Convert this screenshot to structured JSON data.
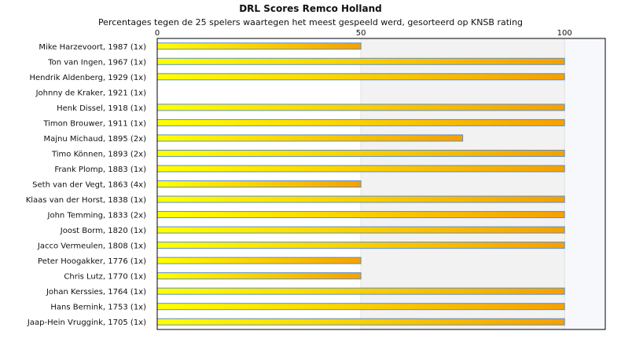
{
  "chart_data": {
    "type": "bar",
    "orientation": "horizontal",
    "title": "DRL Scores Remco Holland",
    "subtitle": "Percentages tegen de 25 spelers waartegen het meest gespeeld werd, gesorteerd op KNSB rating",
    "xlim": [
      0,
      110
    ],
    "xticks": [
      0,
      50,
      100
    ],
    "categories": [
      "Mike Harzevoort, 1987 (1x)",
      "Ton van Ingen, 1967 (1x)",
      "Hendrik Aldenberg, 1929 (1x)",
      "Johnny de Kraker, 1921 (1x)",
      "Henk Dissel, 1918 (1x)",
      "Timon Brouwer, 1911 (1x)",
      "Majnu Michaud, 1895 (2x)",
      "Timo Können, 1893 (2x)",
      "Frank Plomp, 1883 (1x)",
      "Seth van der Vegt, 1863 (4x)",
      "Klaas van der Horst, 1838 (1x)",
      "John Temming, 1833 (2x)",
      "Joost Borm, 1820 (1x)",
      "Jacco Vermeulen, 1808 (1x)",
      "Peter Hoogakker, 1776 (1x)",
      "Chris Lutz, 1770 (1x)",
      "Johan Kerssies, 1764 (1x)",
      "Hans Bernink, 1753 (1x)",
      "Jaap-Hein Vruggink, 1705 (1x)"
    ],
    "values": [
      50,
      100,
      100,
      0,
      100,
      100,
      75,
      100,
      100,
      50,
      100,
      100,
      100,
      100,
      50,
      50,
      100,
      100,
      100
    ],
    "grid": true,
    "legend": "none",
    "colors": {
      "bar_start": "#ffff00",
      "bar_end": "#f5a000",
      "bar_border": "#5b8fc9",
      "band_50_100": "#f2f2f2",
      "band_100_110": "#f6f8fc",
      "axis": "#000000"
    }
  }
}
